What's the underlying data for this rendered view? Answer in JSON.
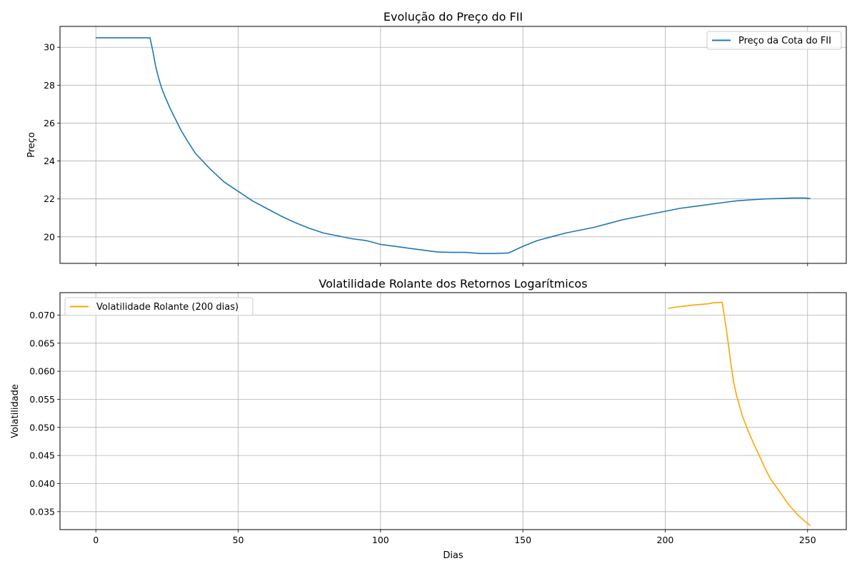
{
  "colors": {
    "price": "#1f77b4",
    "volatility": "#ffa500",
    "grid": "#b0b0b0",
    "axes": "#000000"
  },
  "chart_data": [
    {
      "type": "line",
      "title": "Evolução do Preço do FII",
      "xlabel": "",
      "ylabel": "Preço",
      "xlim": [
        -12.6,
        263.6
      ],
      "ylim": [
        18.6,
        31.1
      ],
      "xticks": [
        0,
        50,
        100,
        150,
        200,
        250
      ],
      "xtick_labels": [
        "",
        "",
        "",
        "",
        "",
        ""
      ],
      "yticks": [
        20,
        22,
        24,
        26,
        28,
        30
      ],
      "ytick_labels": [
        "20",
        "22",
        "24",
        "26",
        "28",
        "30"
      ],
      "grid": true,
      "legend_position": "top-right",
      "series": [
        {
          "name": "Preço da Cota do FII",
          "color": "#1f77b4",
          "x": [
            0,
            5,
            10,
            15,
            19,
            20,
            21,
            22,
            23,
            24,
            26,
            28,
            30,
            32,
            35,
            40,
            45,
            50,
            55,
            60,
            65,
            70,
            75,
            80,
            85,
            90,
            95,
            100,
            105,
            110,
            115,
            120,
            125,
            130,
            135,
            140,
            145,
            150,
            155,
            160,
            165,
            170,
            175,
            180,
            185,
            190,
            195,
            200,
            205,
            210,
            215,
            220,
            225,
            230,
            235,
            240,
            245,
            249,
            251
          ],
          "y": [
            30.5,
            30.5,
            30.5,
            30.5,
            30.5,
            29.8,
            29.0,
            28.4,
            27.9,
            27.5,
            26.8,
            26.2,
            25.6,
            25.1,
            24.4,
            23.6,
            22.9,
            22.4,
            21.9,
            21.5,
            21.1,
            20.75,
            20.45,
            20.2,
            20.05,
            19.9,
            19.8,
            19.6,
            19.5,
            19.4,
            19.3,
            19.2,
            19.18,
            19.18,
            19.12,
            19.12,
            19.15,
            19.5,
            19.8,
            20.0,
            20.2,
            20.35,
            20.5,
            20.7,
            20.9,
            21.05,
            21.2,
            21.35,
            21.5,
            21.6,
            21.7,
            21.8,
            21.9,
            21.95,
            22.0,
            22.02,
            22.05,
            22.05,
            22.02
          ]
        }
      ]
    },
    {
      "type": "line",
      "title": "Volatilidade Rolante dos Retornos Logarítmicos",
      "xlabel": "Dias",
      "ylabel": "Volatilidade",
      "xlim": [
        -12.6,
        263.6
      ],
      "ylim": [
        0.0318,
        0.074
      ],
      "xticks": [
        0,
        50,
        100,
        150,
        200,
        250
      ],
      "xtick_labels": [
        "0",
        "50",
        "100",
        "150",
        "200",
        "250"
      ],
      "yticks": [
        0.035,
        0.04,
        0.045,
        0.05,
        0.055,
        0.06,
        0.065,
        0.07
      ],
      "ytick_labels": [
        "0.035",
        "0.040",
        "0.045",
        "0.050",
        "0.055",
        "0.060",
        "0.065",
        "0.070"
      ],
      "grid": true,
      "legend_position": "top-left",
      "series": [
        {
          "name": "Volatilidade Rolante (200 dias)",
          "color": "#ffa500",
          "x": [
            201,
            205,
            210,
            215,
            217,
            220,
            221,
            222,
            223,
            224,
            225,
            227,
            229,
            231,
            233,
            235,
            237,
            240,
            243,
            246,
            249,
            251
          ],
          "y": [
            0.0712,
            0.0715,
            0.0718,
            0.072,
            0.0722,
            0.0723,
            0.069,
            0.0655,
            0.0615,
            0.0582,
            0.0558,
            0.0522,
            0.0495,
            0.0472,
            0.045,
            0.0428,
            0.0408,
            0.0387,
            0.0365,
            0.0347,
            0.0333,
            0.0325
          ]
        }
      ]
    }
  ]
}
